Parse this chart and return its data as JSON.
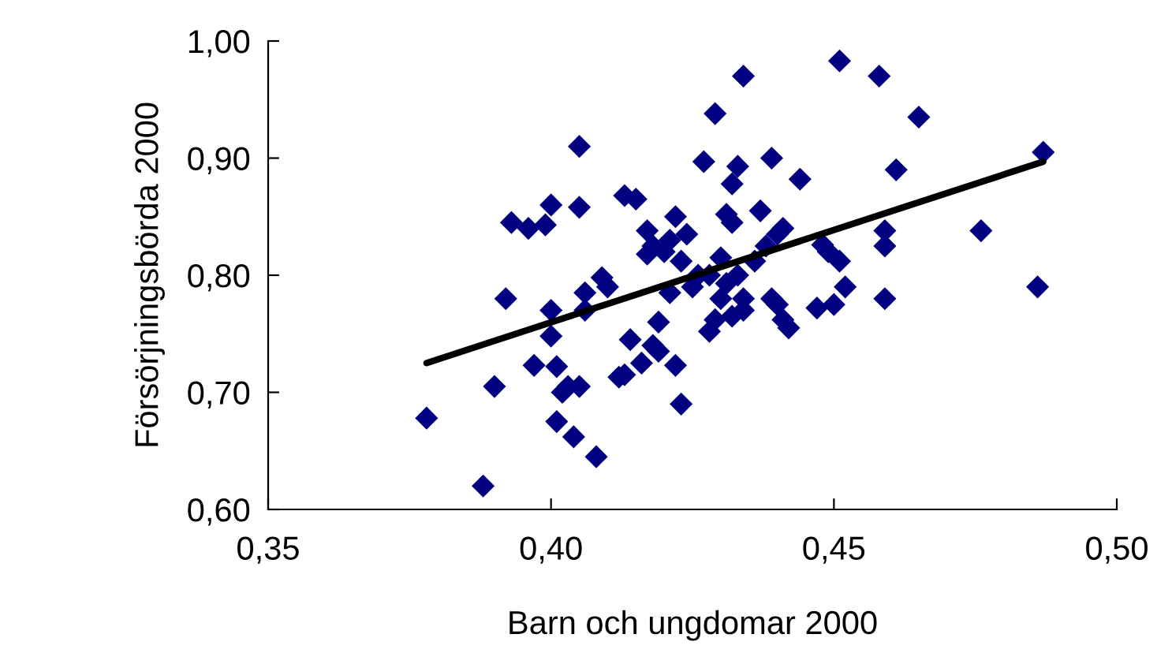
{
  "chart_data": {
    "type": "scatter",
    "xlabel": "Barn och ungdomar 2000",
    "ylabel": "Försörjningsbörda 2000",
    "xlim": [
      0.35,
      0.5
    ],
    "xticks": [
      {
        "value": 0.35,
        "label": "0,35"
      },
      {
        "value": 0.4,
        "label": "0,40"
      },
      {
        "value": 0.45,
        "label": "0,45"
      },
      {
        "value": 0.5,
        "label": "0,50"
      }
    ],
    "ylim": [
      0.6,
      1.0
    ],
    "yticks": [
      {
        "value": 0.6,
        "label": "0,60"
      },
      {
        "value": 0.7,
        "label": "0,70"
      },
      {
        "value": 0.8,
        "label": "0,80"
      },
      {
        "value": 0.9,
        "label": "0,90"
      },
      {
        "value": 1.0,
        "label": "1,00"
      }
    ],
    "grid": false,
    "legend": false,
    "series": [
      {
        "color": "#000080",
        "marker": "diamond",
        "x": [
          0.378,
          0.388,
          0.39,
          0.392,
          0.393,
          0.396,
          0.397,
          0.399,
          0.4,
          0.4,
          0.4,
          0.401,
          0.401,
          0.402,
          0.403,
          0.404,
          0.405,
          0.405,
          0.405,
          0.406,
          0.406,
          0.408,
          0.409,
          0.41,
          0.412,
          0.413,
          0.413,
          0.414,
          0.415,
          0.416,
          0.417,
          0.417,
          0.418,
          0.418,
          0.419,
          0.419,
          0.42,
          0.421,
          0.421,
          0.422,
          0.422,
          0.423,
          0.423,
          0.424,
          0.425,
          0.426,
          0.427,
          0.428,
          0.428,
          0.429,
          0.429,
          0.43,
          0.43,
          0.431,
          0.431,
          0.432,
          0.432,
          0.432,
          0.433,
          0.433,
          0.434,
          0.434,
          0.434,
          0.436,
          0.437,
          0.438,
          0.439,
          0.439,
          0.44,
          0.44,
          0.441,
          0.441,
          0.442,
          0.444,
          0.447,
          0.448,
          0.449,
          0.45,
          0.451,
          0.451,
          0.452,
          0.458,
          0.459,
          0.459,
          0.459,
          0.461,
          0.465,
          0.476,
          0.486,
          0.487
        ],
        "values": [
          0.678,
          0.62,
          0.705,
          0.78,
          0.845,
          0.84,
          0.723,
          0.843,
          0.77,
          0.748,
          0.86,
          0.675,
          0.722,
          0.7,
          0.705,
          0.662,
          0.705,
          0.858,
          0.91,
          0.77,
          0.785,
          0.645,
          0.798,
          0.79,
          0.713,
          0.715,
          0.868,
          0.745,
          0.865,
          0.725,
          0.818,
          0.838,
          0.825,
          0.74,
          0.76,
          0.735,
          0.82,
          0.785,
          0.83,
          0.85,
          0.723,
          0.69,
          0.812,
          0.835,
          0.79,
          0.8,
          0.897,
          0.752,
          0.8,
          0.938,
          0.762,
          0.78,
          0.815,
          0.852,
          0.793,
          0.845,
          0.878,
          0.765,
          0.8,
          0.893,
          0.97,
          0.77,
          0.78,
          0.812,
          0.855,
          0.825,
          0.78,
          0.9,
          0.835,
          0.775,
          0.762,
          0.84,
          0.755,
          0.882,
          0.772,
          0.826,
          0.82,
          0.775,
          0.983,
          0.812,
          0.79,
          0.97,
          0.78,
          0.825,
          0.838,
          0.89,
          0.935,
          0.838,
          0.79,
          0.905
        ]
      },
      {
        "type": "line",
        "color": "#000000",
        "marker": "none",
        "line_style": "solid",
        "x": [
          0.378,
          0.487
        ],
        "values": [
          0.725,
          0.897
        ]
      }
    ]
  }
}
